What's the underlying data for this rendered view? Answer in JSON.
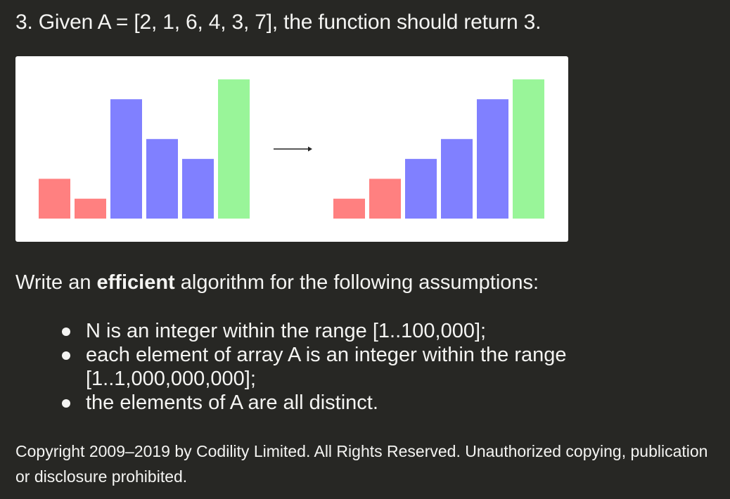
{
  "example": {
    "text": "3. Given A = [2, 1, 6, 4, 3, 7], the function should return 3."
  },
  "figure": {
    "colors": {
      "red": "#ff8080",
      "blue": "#8080ff",
      "green": "#99f599",
      "arrow": "#222222",
      "background": "#ffffff"
    },
    "before": [
      {
        "value": 2,
        "color": "red"
      },
      {
        "value": 1,
        "color": "red"
      },
      {
        "value": 6,
        "color": "blue"
      },
      {
        "value": 4,
        "color": "blue"
      },
      {
        "value": 3,
        "color": "blue"
      },
      {
        "value": 7,
        "color": "green"
      }
    ],
    "after": [
      {
        "value": 1,
        "color": "red"
      },
      {
        "value": 2,
        "color": "red"
      },
      {
        "value": 3,
        "color": "blue"
      },
      {
        "value": 4,
        "color": "blue"
      },
      {
        "value": 6,
        "color": "blue"
      },
      {
        "value": 7,
        "color": "green"
      }
    ]
  },
  "intro": {
    "prefix": "Write an ",
    "emphasis": "efficient",
    "suffix": " algorithm for the following assumptions:"
  },
  "assumptions": [
    "N is an integer within the range [1..100,000];",
    "each element of array A is an integer within the range [1..1,000,000,000];",
    "the elements of A are all distinct."
  ],
  "copyright": "Copyright 2009–2019 by Codility Limited. All Rights Reserved. Unauthorized copying, publication or disclosure prohibited."
}
